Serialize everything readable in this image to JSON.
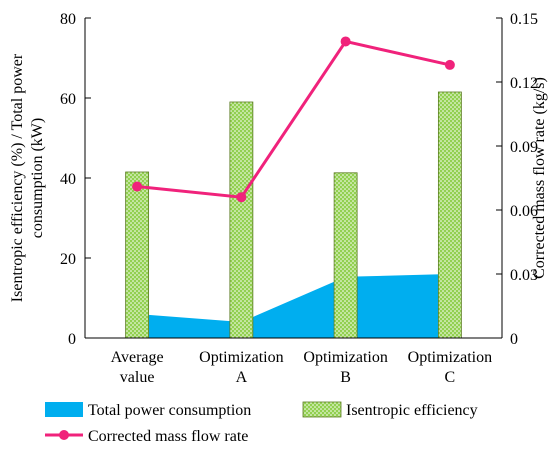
{
  "chart_data": {
    "type": "bar",
    "categories": [
      [
        "Average",
        "value"
      ],
      [
        "Optimization",
        "A"
      ],
      [
        "Optimization",
        "B"
      ],
      [
        "Optimization",
        "C"
      ]
    ],
    "y_left": {
      "label_lines": [
        "Isentropic efficiency (%) / Total power",
        "consumption (kW)"
      ],
      "ylim": [
        0,
        80
      ],
      "ticks": [
        0,
        20,
        40,
        60,
        80
      ]
    },
    "y_right": {
      "label": "Corrected mass flow rate (kg/s)",
      "ylim": [
        0,
        0.15
      ],
      "ticks": [
        "0",
        "0.03",
        "0.06",
        "0.09",
        "0.12",
        "0.15"
      ]
    },
    "series": [
      {
        "name": "Total power consumption",
        "type": "area",
        "axis": "left",
        "color": "#00AEEF",
        "values": [
          6.0,
          4.0,
          15.3,
          16.0
        ]
      },
      {
        "name": "Isentropic efficiency",
        "type": "bar",
        "axis": "left",
        "color": "#92D050",
        "values": [
          41.5,
          59.0,
          41.3,
          61.5
        ]
      },
      {
        "name": "Corrected mass flow rate",
        "type": "line",
        "axis": "right",
        "color": "#F0227B",
        "values": [
          0.071,
          0.066,
          0.139,
          0.128
        ]
      }
    ],
    "legend": {
      "position": "bottom",
      "items": [
        "Total power consumption",
        "Isentropic efficiency",
        "Corrected mass flow rate"
      ]
    },
    "grid": false
  }
}
